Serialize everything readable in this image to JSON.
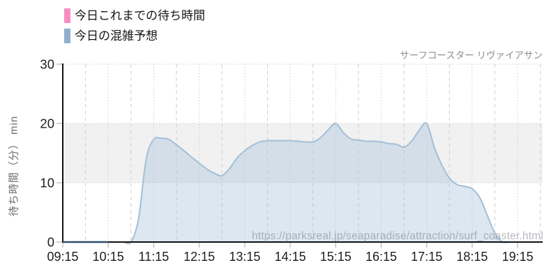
{
  "title": "サーフコースター リヴァイアサン",
  "watermark": "https://parksreal.jp/seaparadise/attraction/surf_coaster.html",
  "legend": {
    "items": [
      {
        "label": "今日これまでの待ち時間",
        "color": "#f78cc2"
      },
      {
        "label": "今日の混雑予想",
        "color": "#8fafca"
      }
    ]
  },
  "y_axis": {
    "title": "待ち時間（分） min",
    "ticks": [
      0,
      10,
      20,
      30
    ],
    "min": 0,
    "max": 30
  },
  "x_axis": {
    "tick_labels": [
      "09:15",
      "10:15",
      "11:15",
      "12:15",
      "13:15",
      "14:15",
      "15:15",
      "16:15",
      "17:15",
      "18:15",
      "19:15"
    ]
  },
  "chart_data": {
    "type": "area",
    "title": "サーフコースター リヴァイアサン",
    "xlabel": "",
    "ylabel": "待ち時間（分） min",
    "ylim": [
      0,
      30
    ],
    "xlim": [
      "09:15",
      "19:48"
    ],
    "grid": true,
    "plot_band_y": [
      10,
      20
    ],
    "legend_position": "top-left",
    "series": [
      {
        "name": "今日これまでの待ち時間",
        "type": "line",
        "legend_color": "#f78cc2",
        "chart_line_color": "#2f4d68",
        "points": [
          [
            "09:15",
            0
          ],
          [
            "09:25",
            0
          ],
          [
            "09:35",
            0
          ],
          [
            "09:45",
            0
          ],
          [
            "09:55",
            0
          ],
          [
            "10:05",
            0
          ],
          [
            "10:15",
            0
          ]
        ]
      },
      {
        "name": "今日の混雑予想",
        "type": "areaspline",
        "legend_color": "#8fafca",
        "chart_line_color": "#a3bfd6",
        "fill_color": "rgba(167,196,221,0.40)",
        "points": [
          [
            "09:15",
            0
          ],
          [
            "09:25",
            0
          ],
          [
            "09:35",
            0
          ],
          [
            "09:45",
            0
          ],
          [
            "09:55",
            0
          ],
          [
            "10:05",
            0
          ],
          [
            "10:15",
            0
          ],
          [
            "10:25",
            0
          ],
          [
            "10:35",
            0
          ],
          [
            "10:45",
            0
          ],
          [
            "10:55",
            4
          ],
          [
            "11:05",
            14
          ],
          [
            "11:15",
            17.3
          ],
          [
            "11:25",
            17.5
          ],
          [
            "11:35",
            17.3
          ],
          [
            "11:45",
            16.4
          ],
          [
            "11:55",
            15.4
          ],
          [
            "12:05",
            14.3
          ],
          [
            "12:15",
            13.3
          ],
          [
            "12:25",
            12.3
          ],
          [
            "12:35",
            11.6
          ],
          [
            "12:45",
            11.2
          ],
          [
            "12:55",
            12.4
          ],
          [
            "13:05",
            14.2
          ],
          [
            "13:15",
            15.4
          ],
          [
            "13:25",
            16.3
          ],
          [
            "13:35",
            16.9
          ],
          [
            "13:45",
            17.1
          ],
          [
            "13:55",
            17.1
          ],
          [
            "14:05",
            17.1
          ],
          [
            "14:15",
            17.1
          ],
          [
            "14:25",
            17
          ],
          [
            "14:35",
            16.9
          ],
          [
            "14:45",
            16.9
          ],
          [
            "14:55",
            17.6
          ],
          [
            "15:05",
            18.9
          ],
          [
            "15:15",
            20
          ],
          [
            "15:25",
            18.5
          ],
          [
            "15:35",
            17.4
          ],
          [
            "15:45",
            17.2
          ],
          [
            "15:55",
            17
          ],
          [
            "16:05",
            17
          ],
          [
            "16:15",
            16.9
          ],
          [
            "16:25",
            16.6
          ],
          [
            "16:35",
            16.5
          ],
          [
            "16:45",
            16
          ],
          [
            "16:55",
            17
          ],
          [
            "17:05",
            18.8
          ],
          [
            "17:15",
            20
          ],
          [
            "17:25",
            16
          ],
          [
            "17:35",
            13
          ],
          [
            "17:45",
            10.8
          ],
          [
            "17:55",
            9.7
          ],
          [
            "18:05",
            9.4
          ],
          [
            "18:15",
            9
          ],
          [
            "18:25",
            7.5
          ],
          [
            "18:35",
            4.5
          ],
          [
            "18:45",
            1.5
          ],
          [
            "18:55",
            0
          ],
          [
            "19:05",
            0
          ],
          [
            "19:15",
            0
          ],
          [
            "19:25",
            0
          ],
          [
            "19:35",
            0
          ],
          [
            "19:45",
            0
          ]
        ]
      }
    ]
  },
  "chart_colors": {
    "band": "#f1f1f1",
    "grid": "#cdcdcd",
    "axis": "#111111",
    "tick": "#c4c4c4",
    "axis_label": "#1d1d1d"
  }
}
